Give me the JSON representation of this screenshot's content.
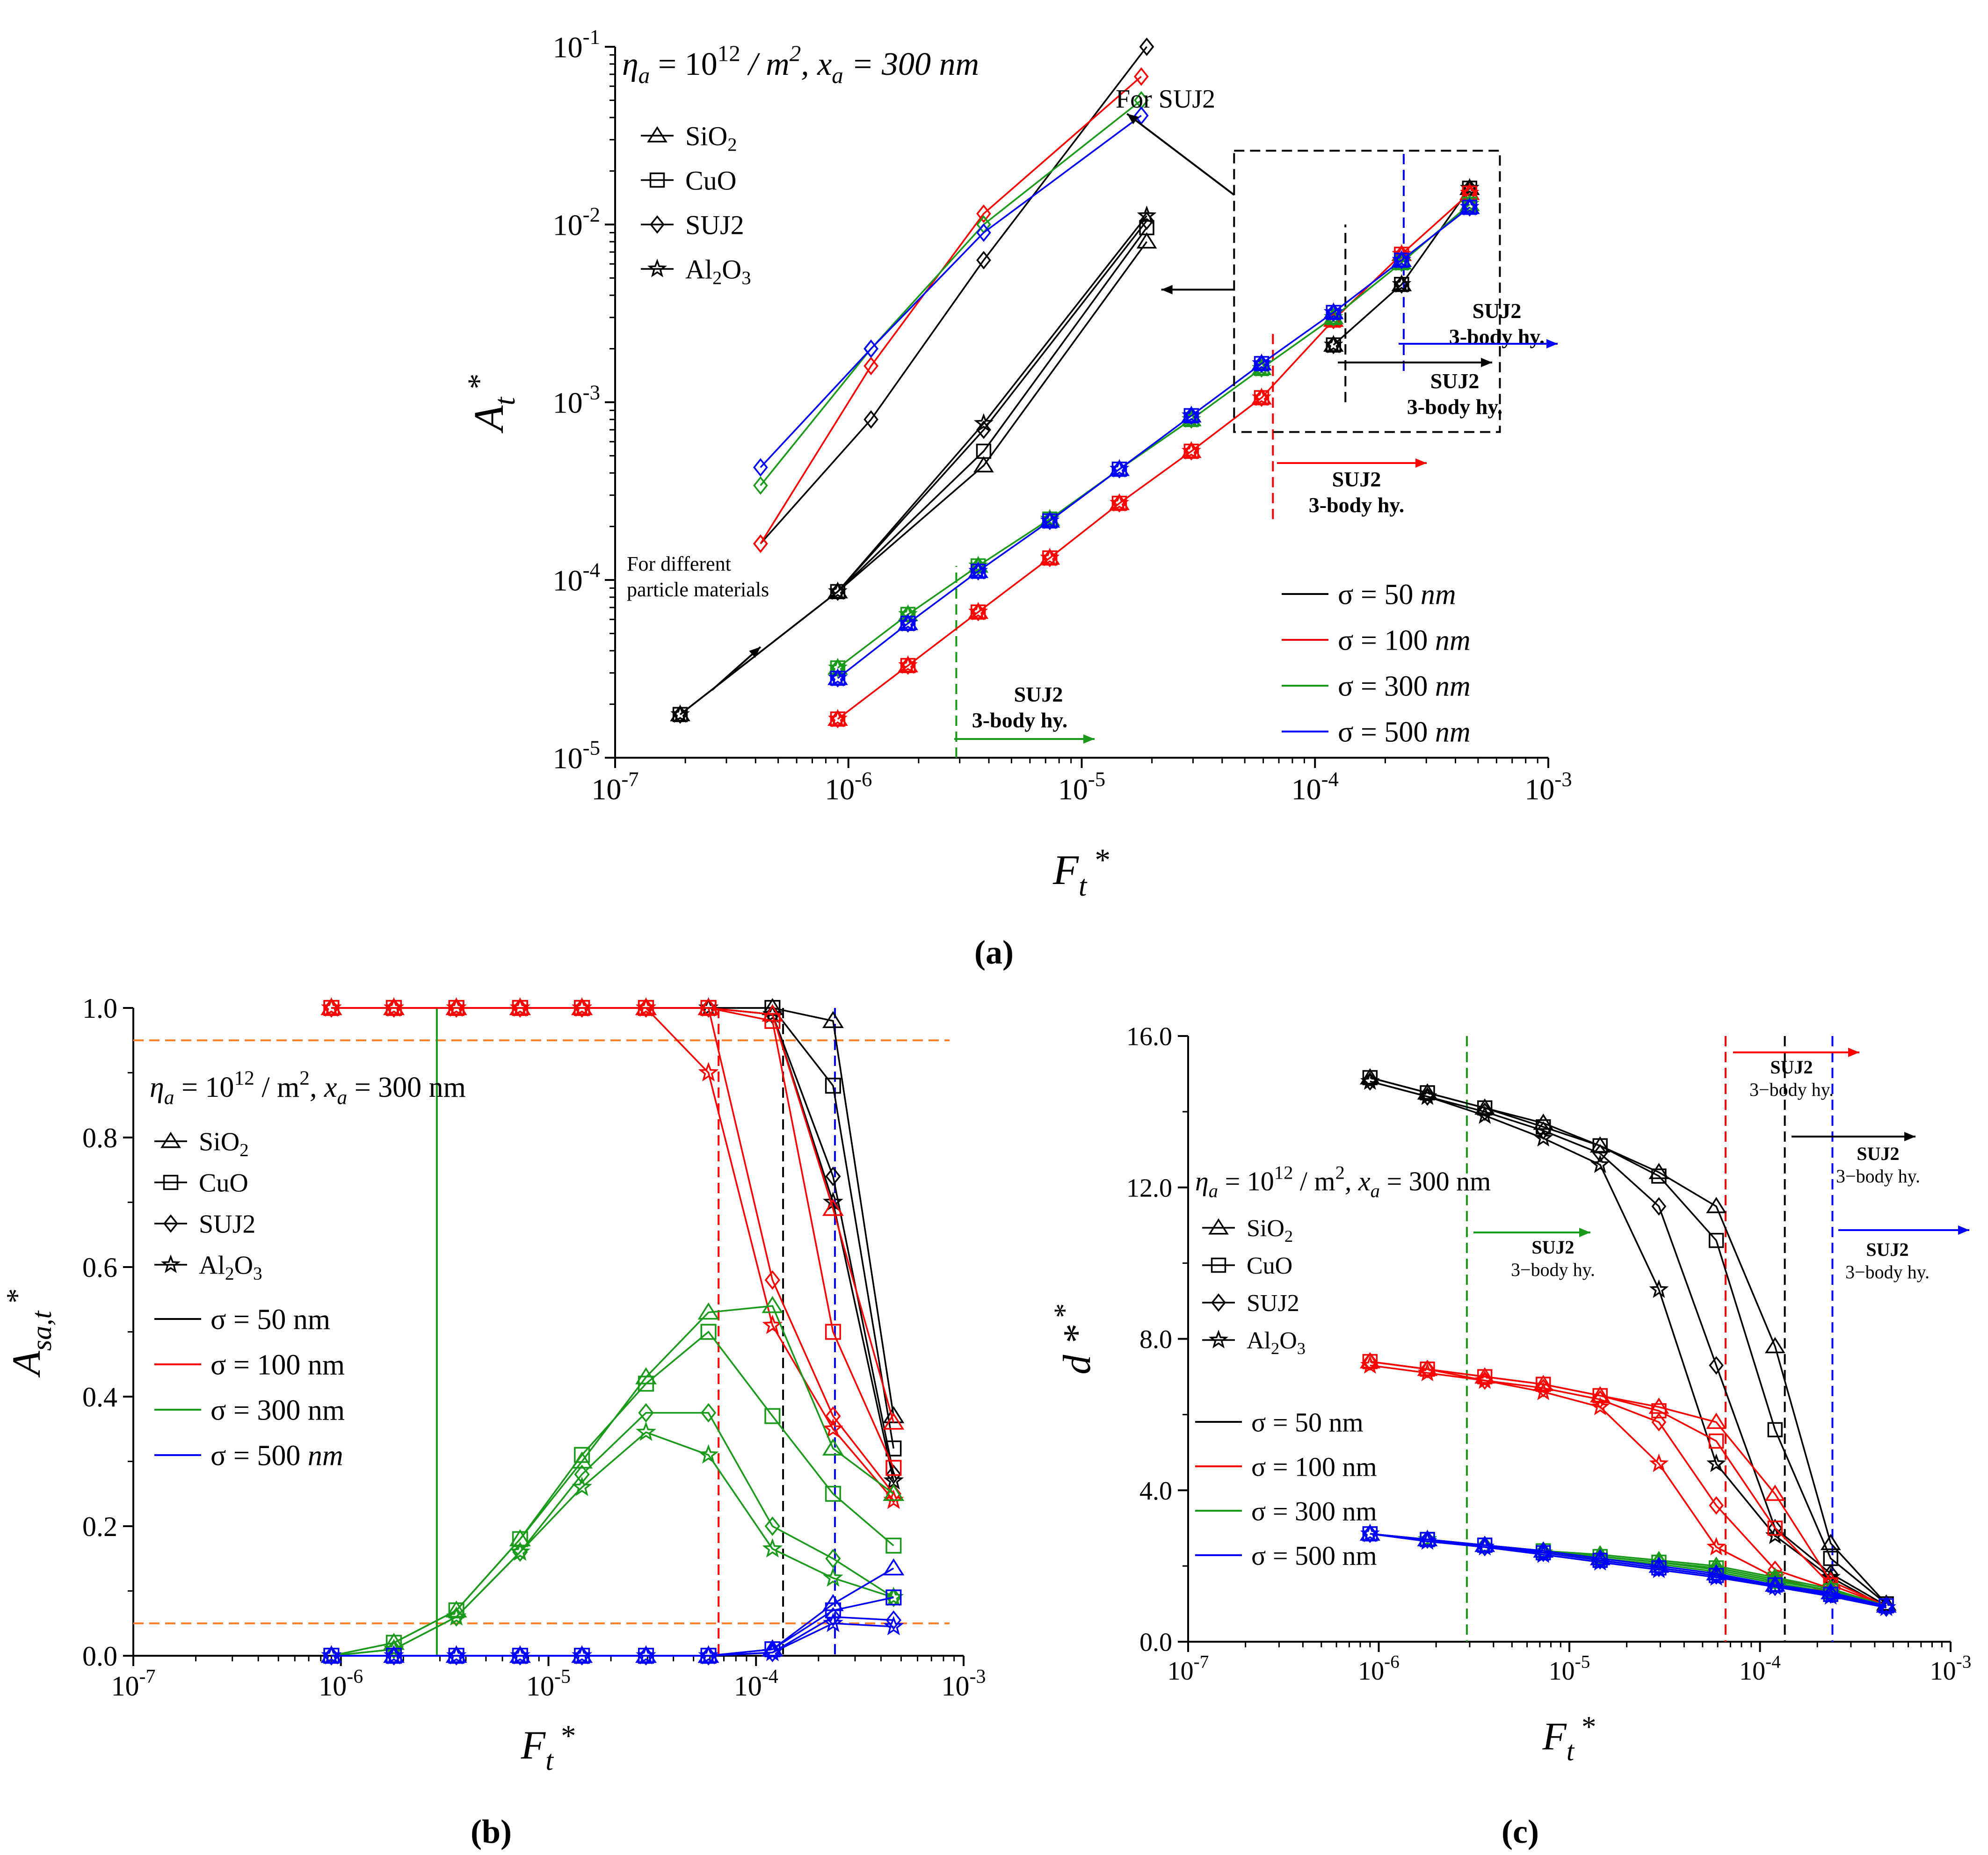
{
  "colors": {
    "s50": "#000000",
    "s100": "#ff0000",
    "s300": "#1a9a1a",
    "s500": "#0000ff",
    "threshold": "#ff7f27",
    "axis": "#000000"
  },
  "chart_data": [
    {
      "id": "a",
      "type": "line",
      "panel_label": "(a)",
      "title": "η_a = 10^12 / m^2, x_a = 300 nm",
      "title_parts": {
        "eta": "η",
        "a1": "a",
        "eq": " = 10",
        "exp": "12",
        "rest": " / m",
        "sq": "2",
        "comma": ", x",
        "a2": "a",
        "tail": " = 300 nm"
      },
      "xlabel": "F_t *",
      "ylabel": "A_t *",
      "xscale": "log",
      "yscale": "log",
      "xlim": [
        1e-07,
        0.001
      ],
      "ylim": [
        1e-05,
        0.1
      ],
      "xticks": [
        "10^-7",
        "10^-6",
        "10^-5",
        "10^-4",
        "10^-3"
      ],
      "yticks": [
        "10^-5",
        "10^-4",
        "10^-3",
        "10^-2",
        "10^-1"
      ],
      "legend_materials": [
        "SiO2",
        "CuO",
        "SUJ2",
        "Al2O3"
      ],
      "legend_sigma": [
        "σ = 50 nm",
        "σ = 100 nm",
        "σ = 300 nm",
        "σ = 500 nm"
      ],
      "annotations": {
        "for_suj2": "For SUJ2",
        "for_different": "For different",
        "particle_materials": "particle materials",
        "suj2": "SUJ2",
        "three_body": "3-body hy."
      },
      "series": [
        {
          "name": "SUJ2 inset σ=50",
          "sigma": "50",
          "marker": "diamond",
          "x": [
            4.2e-07,
            1.25e-06,
            3.8e-06,
            1.9e-05
          ],
          "values": [
            0.00016,
            0.0008,
            0.0063,
            0.1
          ]
        },
        {
          "name": "SUJ2 inset σ=100",
          "sigma": "100",
          "marker": "diamond",
          "x": [
            4.2e-07,
            1.25e-06,
            3.8e-06,
            1.8e-05
          ],
          "values": [
            0.00016,
            0.0016,
            0.0115,
            0.068
          ]
        },
        {
          "name": "SUJ2 inset σ=300",
          "sigma": "300",
          "marker": "diamond",
          "x": [
            4.2e-07,
            1.25e-06,
            3.8e-06,
            1.8e-05
          ],
          "values": [
            0.00034,
            0.002,
            0.01,
            0.05
          ]
        },
        {
          "name": "SUJ2 inset σ=500",
          "sigma": "500",
          "marker": "diamond",
          "x": [
            4.2e-07,
            1.25e-06,
            3.8e-06,
            1.8e-05
          ],
          "values": [
            0.00043,
            0.002,
            0.009,
            0.041
          ]
        },
        {
          "name": "materials σ=50 SiO2",
          "sigma": "50",
          "marker": "triangle",
          "x": [
            1.9e-07,
            9e-07,
            3.8e-06,
            1.9e-05
          ],
          "values": [
            1.75e-05,
            8.6e-05,
            0.00044,
            0.008
          ]
        },
        {
          "name": "materials σ=50 CuO",
          "sigma": "50",
          "marker": "square",
          "x": [
            1.9e-07,
            9e-07,
            3.8e-06,
            1.9e-05
          ],
          "values": [
            1.75e-05,
            8.6e-05,
            0.00053,
            0.0096
          ]
        },
        {
          "name": "materials σ=50 SUJ2",
          "sigma": "50",
          "marker": "diamond",
          "x": [
            1.9e-07,
            9e-07,
            3.8e-06,
            1.9e-05
          ],
          "values": [
            1.75e-05,
            8.6e-05,
            0.0007,
            0.0105
          ]
        },
        {
          "name": "materials σ=50 Al2O3",
          "sigma": "50",
          "marker": "star",
          "x": [
            1.9e-07,
            9e-07,
            3.8e-06,
            1.9e-05
          ],
          "values": [
            1.75e-05,
            8.6e-05,
            0.00076,
            0.0112
          ]
        },
        {
          "name": "σ=50",
          "sigma": "50",
          "marker": "mixed",
          "x": [
            0.00012,
            0.000235,
            0.00046
          ],
          "values": [
            0.0021,
            0.0046,
            0.016
          ]
        },
        {
          "name": "σ=100",
          "sigma": "100",
          "marker": "mixed",
          "x": [
            9e-07,
            1.8e-06,
            3.6e-06,
            7.3e-06,
            1.45e-05,
            2.95e-05,
            5.9e-05,
            0.00012,
            0.000235,
            0.00046
          ],
          "values": [
            1.65e-05,
            3.3e-05,
            6.6e-05,
            0.000133,
            0.00027,
            0.00053,
            0.00106,
            0.0029,
            0.0068,
            0.015
          ]
        },
        {
          "name": "σ=300",
          "sigma": "300",
          "marker": "mixed",
          "x": [
            9e-07,
            1.8e-06,
            3.6e-06,
            7.3e-06,
            1.45e-05,
            2.95e-05,
            5.9e-05,
            0.00012,
            0.000235,
            0.00046
          ],
          "values": [
            3.2e-05,
            6.4e-05,
            0.00012,
            0.00022,
            0.00042,
            0.0008,
            0.00155,
            0.003,
            0.0061,
            0.013
          ]
        },
        {
          "name": "σ=500",
          "sigma": "500",
          "marker": "mixed",
          "x": [
            9e-07,
            1.8e-06,
            3.6e-06,
            7.3e-06,
            1.45e-05,
            2.95e-05,
            5.9e-05,
            0.00012,
            0.000235,
            0.00046
          ],
          "values": [
            2.8e-05,
            5.7e-05,
            0.000112,
            0.000215,
            0.00042,
            0.00084,
            0.00165,
            0.0032,
            0.0063,
            0.0125
          ]
        }
      ],
      "threshold_lines": [
        {
          "sigma": "300",
          "x": 2.9e-06,
          "y_range": [
            1e-05,
            0.00012
          ]
        },
        {
          "sigma": "100",
          "x": 6.6e-05,
          "y_range": [
            0.00022,
            0.0025
          ]
        },
        {
          "sigma": "50",
          "x": 0.000135,
          "y_range": [
            0.001,
            0.01
          ]
        },
        {
          "sigma": "500",
          "x": 0.00024,
          "y_range": [
            0.0015,
            0.025
          ]
        }
      ]
    },
    {
      "id": "b",
      "type": "line",
      "panel_label": "(b)",
      "title": "η_a = 10^12 / m^2, x_a = 300 nm",
      "title_parts": {
        "eta": "η",
        "a1": "a",
        "eq": " = 10",
        "exp": "12",
        "rest": " / m",
        "sq": "2",
        "comma": ", x",
        "a2": "a",
        "tail": " = 300 nm"
      },
      "xlabel": "F_t *",
      "ylabel": "A_sa,t *",
      "xscale": "log",
      "yscale": "linear",
      "xlim": [
        1e-07,
        0.001
      ],
      "ylim": [
        0,
        1.0
      ],
      "xticks": [
        "10^-7",
        "10^-6",
        "10^-5",
        "10^-4",
        "10^-3"
      ],
      "yticks": [
        "0.0",
        "0.2",
        "0.4",
        "0.6",
        "0.8",
        "1.0"
      ],
      "legend_materials": [
        "SiO2",
        "CuO",
        "SUJ2",
        "Al2O3"
      ],
      "legend_sigma": [
        "σ = 50 nm",
        "σ = 100 nm",
        "σ = 300 nm",
        "σ = 500 nm"
      ],
      "hlines": [
        0.95,
        0.05
      ],
      "x": [
        9e-07,
        1.8e-06,
        3.6e-06,
        7.3e-06,
        1.45e-05,
        2.95e-05,
        5.9e-05,
        0.00012,
        0.000235,
        0.00046
      ],
      "series": [
        {
          "sigma": "50",
          "marker": "triangle",
          "values": [
            1,
            1,
            1,
            1,
            1,
            1,
            1,
            1.0,
            0.98,
            0.37
          ]
        },
        {
          "sigma": "50",
          "marker": "square",
          "values": [
            1,
            1,
            1,
            1,
            1,
            1,
            1,
            1.0,
            0.88,
            0.32
          ]
        },
        {
          "sigma": "50",
          "marker": "diamond",
          "values": [
            1,
            1,
            1,
            1,
            1,
            1,
            1,
            0.99,
            0.74,
            0.28
          ]
        },
        {
          "sigma": "50",
          "marker": "star",
          "values": [
            1,
            1,
            1,
            1,
            1,
            1,
            1,
            0.99,
            0.7,
            0.27
          ]
        },
        {
          "sigma": "100",
          "marker": "triangle",
          "values": [
            1,
            1,
            1,
            1,
            1,
            1,
            1,
            0.99,
            0.69,
            0.36
          ]
        },
        {
          "sigma": "100",
          "marker": "square",
          "values": [
            1,
            1,
            1,
            1,
            1,
            1,
            1,
            0.98,
            0.5,
            0.29
          ]
        },
        {
          "sigma": "100",
          "marker": "diamond",
          "values": [
            1,
            1,
            1,
            1,
            1,
            1,
            1,
            0.58,
            0.37,
            0.25
          ]
        },
        {
          "sigma": "100",
          "marker": "star",
          "values": [
            1,
            1,
            1,
            1,
            1,
            1,
            0.9,
            0.51,
            0.35,
            0.24
          ]
        },
        {
          "sigma": "300",
          "marker": "triangle",
          "values": [
            0,
            0.02,
            0.07,
            0.18,
            0.3,
            0.43,
            0.53,
            0.54,
            0.32,
            0.25
          ]
        },
        {
          "sigma": "300",
          "marker": "square",
          "values": [
            0,
            0.02,
            0.07,
            0.18,
            0.31,
            0.42,
            0.5,
            0.37,
            0.25,
            0.17
          ]
        },
        {
          "sigma": "300",
          "marker": "diamond",
          "values": [
            0,
            0.01,
            0.06,
            0.16,
            0.28,
            0.375,
            0.375,
            0.2,
            0.15,
            0.09
          ]
        },
        {
          "sigma": "300",
          "marker": "star",
          "values": [
            0,
            0.01,
            0.06,
            0.16,
            0.26,
            0.345,
            0.31,
            0.165,
            0.12,
            0.09
          ]
        },
        {
          "sigma": "500",
          "marker": "triangle",
          "values": [
            0,
            0,
            0,
            0,
            0,
            0,
            0,
            0.01,
            0.08,
            0.135
          ]
        },
        {
          "sigma": "500",
          "marker": "square",
          "values": [
            0,
            0,
            0,
            0,
            0,
            0,
            0,
            0.01,
            0.07,
            0.09
          ]
        },
        {
          "sigma": "500",
          "marker": "diamond",
          "values": [
            0,
            0,
            0,
            0,
            0,
            0,
            0,
            0.005,
            0.06,
            0.055
          ]
        },
        {
          "sigma": "500",
          "marker": "star",
          "values": [
            0,
            0,
            0,
            0,
            0,
            0,
            0,
            0.005,
            0.05,
            0.045
          ]
        }
      ],
      "threshold_lines": [
        {
          "sigma": "300",
          "x": 2.9e-06
        },
        {
          "sigma": "100",
          "x": 6.6e-05
        },
        {
          "sigma": "50",
          "x": 0.000135
        },
        {
          "sigma": "500",
          "x": 0.00024
        }
      ]
    },
    {
      "id": "c",
      "type": "line",
      "panel_label": "(c)",
      "title": "η_a = 10^12 / m^2, x_a = 300 nm",
      "title_parts": {
        "eta": "η",
        "a1": "a",
        "eq": " = 10",
        "exp": "12",
        "rest": " / m",
        "sq": "2",
        "comma": ", x",
        "a2": "a",
        "tail": " = 300 nm"
      },
      "xlabel": "F_t *",
      "ylabel": "d *",
      "xscale": "log",
      "yscale": "linear",
      "xlim": [
        1e-07,
        0.001
      ],
      "ylim": [
        0,
        16.0
      ],
      "xticks": [
        "10^-7",
        "10^-6",
        "10^-5",
        "10^-4",
        "10^-3"
      ],
      "yticks": [
        "0.0",
        "4.0",
        "8.0",
        "12.0",
        "16.0"
      ],
      "legend_materials": [
        "SiO2",
        "CuO",
        "SUJ2",
        "Al2O3"
      ],
      "legend_sigma": [
        "σ = 50 nm",
        "σ = 100 nm",
        "σ = 300 nm",
        "σ = 500 nm"
      ],
      "annotations": {
        "suj2": "SUJ2",
        "three_body": "3−body hy."
      },
      "x": [
        9e-07,
        1.8e-06,
        3.6e-06,
        7.3e-06,
        1.45e-05,
        2.95e-05,
        5.9e-05,
        0.00012,
        0.000235,
        0.00046
      ],
      "series": [
        {
          "sigma": "50",
          "marker": "triangle",
          "values": [
            14.9,
            14.5,
            14.1,
            13.7,
            13.1,
            12.4,
            11.5,
            7.8,
            2.6,
            1.0
          ]
        },
        {
          "sigma": "50",
          "marker": "square",
          "values": [
            14.9,
            14.5,
            14.1,
            13.6,
            13.1,
            12.3,
            10.6,
            5.6,
            2.2,
            1.0
          ]
        },
        {
          "sigma": "50",
          "marker": "diamond",
          "values": [
            14.8,
            14.4,
            14.0,
            13.5,
            12.9,
            11.5,
            7.3,
            3.0,
            1.8,
            0.95
          ]
        },
        {
          "sigma": "50",
          "marker": "star",
          "values": [
            14.8,
            14.4,
            13.9,
            13.3,
            12.6,
            9.3,
            4.7,
            2.8,
            1.7,
            0.9
          ]
        },
        {
          "sigma": "100",
          "marker": "triangle",
          "values": [
            7.4,
            7.2,
            7.0,
            6.8,
            6.5,
            6.2,
            5.8,
            3.9,
            1.6,
            0.95
          ]
        },
        {
          "sigma": "100",
          "marker": "square",
          "values": [
            7.4,
            7.2,
            7.0,
            6.8,
            6.5,
            6.1,
            5.3,
            3.0,
            1.5,
            0.95
          ]
        },
        {
          "sigma": "100",
          "marker": "diamond",
          "values": [
            7.4,
            7.2,
            6.9,
            6.7,
            6.4,
            5.8,
            3.6,
            1.9,
            1.4,
            0.9
          ]
        },
        {
          "sigma": "100",
          "marker": "star",
          "values": [
            7.3,
            7.1,
            6.9,
            6.6,
            6.2,
            4.7,
            2.5,
            1.7,
            1.3,
            0.9
          ]
        },
        {
          "sigma": "300",
          "marker": "triangle",
          "values": [
            2.85,
            2.7,
            2.55,
            2.4,
            2.3,
            2.15,
            2.0,
            1.7,
            1.4,
            0.95
          ]
        },
        {
          "sigma": "300",
          "marker": "square",
          "values": [
            2.85,
            2.7,
            2.55,
            2.4,
            2.25,
            2.1,
            1.95,
            1.65,
            1.35,
            0.95
          ]
        },
        {
          "sigma": "300",
          "marker": "diamond",
          "values": [
            2.85,
            2.7,
            2.55,
            2.4,
            2.25,
            2.1,
            1.9,
            1.6,
            1.35,
            0.9
          ]
        },
        {
          "sigma": "300",
          "marker": "star",
          "values": [
            2.85,
            2.7,
            2.5,
            2.35,
            2.2,
            2.05,
            1.85,
            1.55,
            1.3,
            0.9
          ]
        },
        {
          "sigma": "500",
          "marker": "triangle",
          "values": [
            2.85,
            2.7,
            2.55,
            2.4,
            2.2,
            2.0,
            1.8,
            1.5,
            1.3,
            0.95
          ]
        },
        {
          "sigma": "500",
          "marker": "square",
          "values": [
            2.85,
            2.7,
            2.55,
            2.35,
            2.15,
            1.95,
            1.75,
            1.5,
            1.25,
            0.95
          ]
        },
        {
          "sigma": "500",
          "marker": "diamond",
          "values": [
            2.85,
            2.7,
            2.5,
            2.35,
            2.15,
            1.95,
            1.75,
            1.45,
            1.25,
            0.9
          ]
        },
        {
          "sigma": "500",
          "marker": "star",
          "values": [
            2.85,
            2.65,
            2.5,
            2.3,
            2.1,
            1.9,
            1.7,
            1.45,
            1.2,
            0.9
          ]
        }
      ],
      "threshold_lines": [
        {
          "sigma": "300",
          "x": 2.9e-06
        },
        {
          "sigma": "100",
          "x": 6.6e-05
        },
        {
          "sigma": "50",
          "x": 0.000135
        },
        {
          "sigma": "500",
          "x": 0.00024
        }
      ]
    }
  ]
}
